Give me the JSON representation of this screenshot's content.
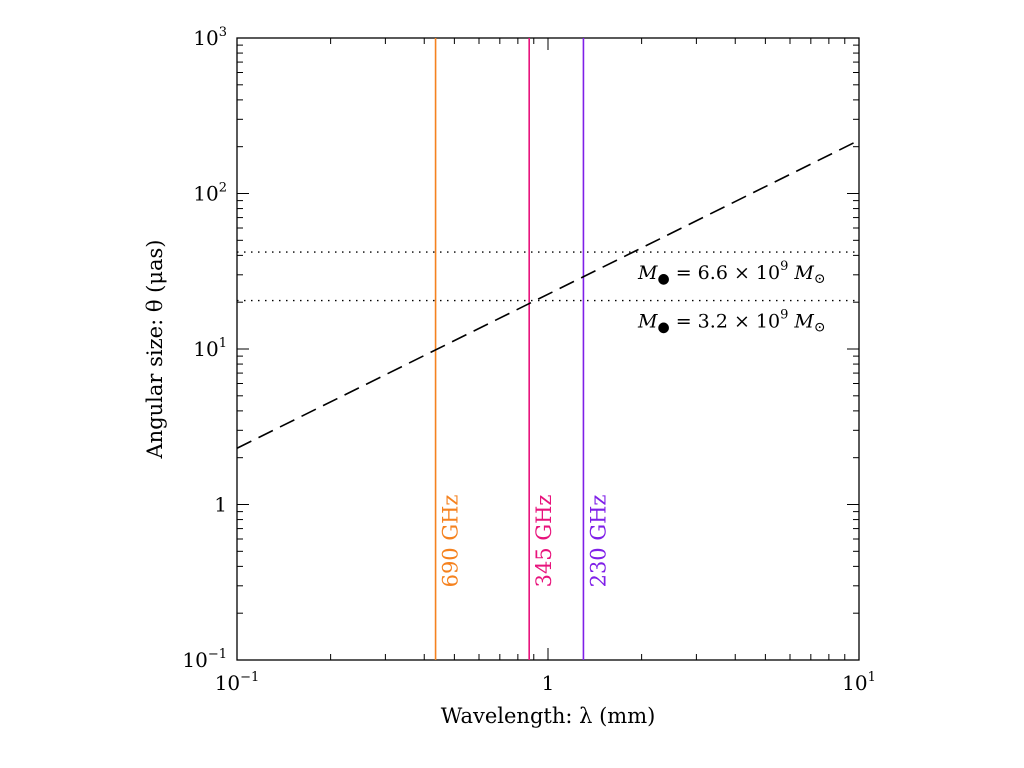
{
  "chart_data": {
    "type": "line",
    "xlabel": "Wavelength: λ (mm)",
    "ylabel": "Angular size: θ (μas)",
    "xscale": "log",
    "yscale": "log",
    "xlim": [
      0.1,
      10
    ],
    "ylim": [
      0.1,
      1000
    ],
    "x_ticks": [
      {
        "value": 0.1,
        "base": "10",
        "exp": "−1"
      },
      {
        "value": 1,
        "base": "1",
        "exp": ""
      },
      {
        "value": 10,
        "base": "10",
        "exp": "1"
      }
    ],
    "y_ticks": [
      {
        "value": 0.1,
        "base": "10",
        "exp": "−1"
      },
      {
        "value": 1,
        "base": "1",
        "exp": ""
      },
      {
        "value": 10,
        "base": "10",
        "exp": "1"
      },
      {
        "value": 100,
        "base": "10",
        "exp": "2"
      },
      {
        "value": 1000,
        "base": "10",
        "exp": "3"
      }
    ],
    "series": [
      {
        "style": "dashed",
        "color": "#000000",
        "x": [
          0.1,
          10
        ],
        "y": [
          2.3,
          220
        ]
      }
    ],
    "vertical_lines": [
      {
        "x": 0.435,
        "label": "690 GHz",
        "color": "#f5821f"
      },
      {
        "x": 0.87,
        "label": "345 GHz",
        "color": "#e8137c"
      },
      {
        "x": 1.3,
        "label": "230 GHz",
        "color": "#7f1fe8"
      }
    ],
    "horizontal_lines": [
      {
        "y": 42,
        "style": "dotted",
        "label": {
          "prefix": "M",
          "eq": " = 6.6 × 10",
          "exp": "9",
          "unit": "M"
        }
      },
      {
        "y": 20.5,
        "style": "dotted",
        "label": {
          "prefix": "M",
          "eq": " = 3.2 × 10",
          "exp": "9",
          "unit": "M"
        }
      }
    ],
    "grid": false
  }
}
